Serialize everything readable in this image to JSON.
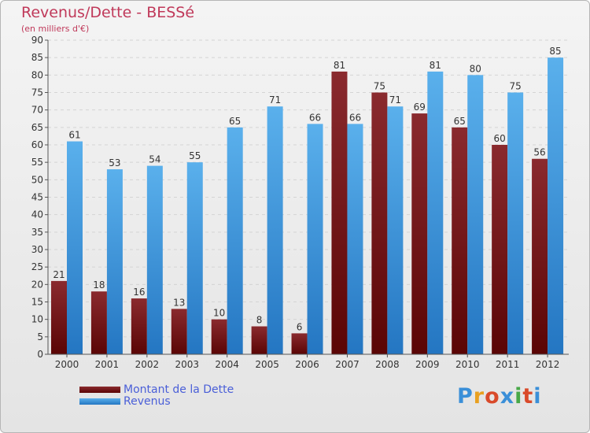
{
  "chart_data": {
    "type": "bar",
    "title": "Revenus/Dette - BESSé",
    "subtitle": "(en milliers d'€)",
    "categories": [
      "2000",
      "2001",
      "2002",
      "2003",
      "2004",
      "2005",
      "2006",
      "2007",
      "2008",
      "2009",
      "2010",
      "2011",
      "2012"
    ],
    "series": [
      {
        "name": "Montant de la Dette",
        "color": "#7a1518",
        "values": [
          21,
          18,
          16,
          13,
          10,
          8,
          6,
          81,
          75,
          69,
          65,
          60,
          56
        ]
      },
      {
        "name": "Revenus",
        "color": "#3a9ce0",
        "values": [
          61,
          53,
          54,
          55,
          65,
          71,
          66,
          66,
          71,
          81,
          80,
          75,
          85
        ]
      }
    ],
    "ylim": [
      0,
      90
    ],
    "yticks": [
      0,
      5,
      10,
      15,
      20,
      25,
      30,
      35,
      40,
      45,
      50,
      55,
      60,
      65,
      70,
      75,
      80,
      85,
      90
    ],
    "grid": true,
    "legend_position": "bottom-left"
  },
  "logo": {
    "text": "Proxiti",
    "letters": [
      "P",
      "r",
      "o",
      "x",
      "i",
      "t",
      "i"
    ],
    "colors": [
      "#3a8fd8",
      "#e8a020",
      "#d94a2a",
      "#3a8fd8",
      "#48a848",
      "#d94a2a",
      "#3a8fd8"
    ]
  }
}
